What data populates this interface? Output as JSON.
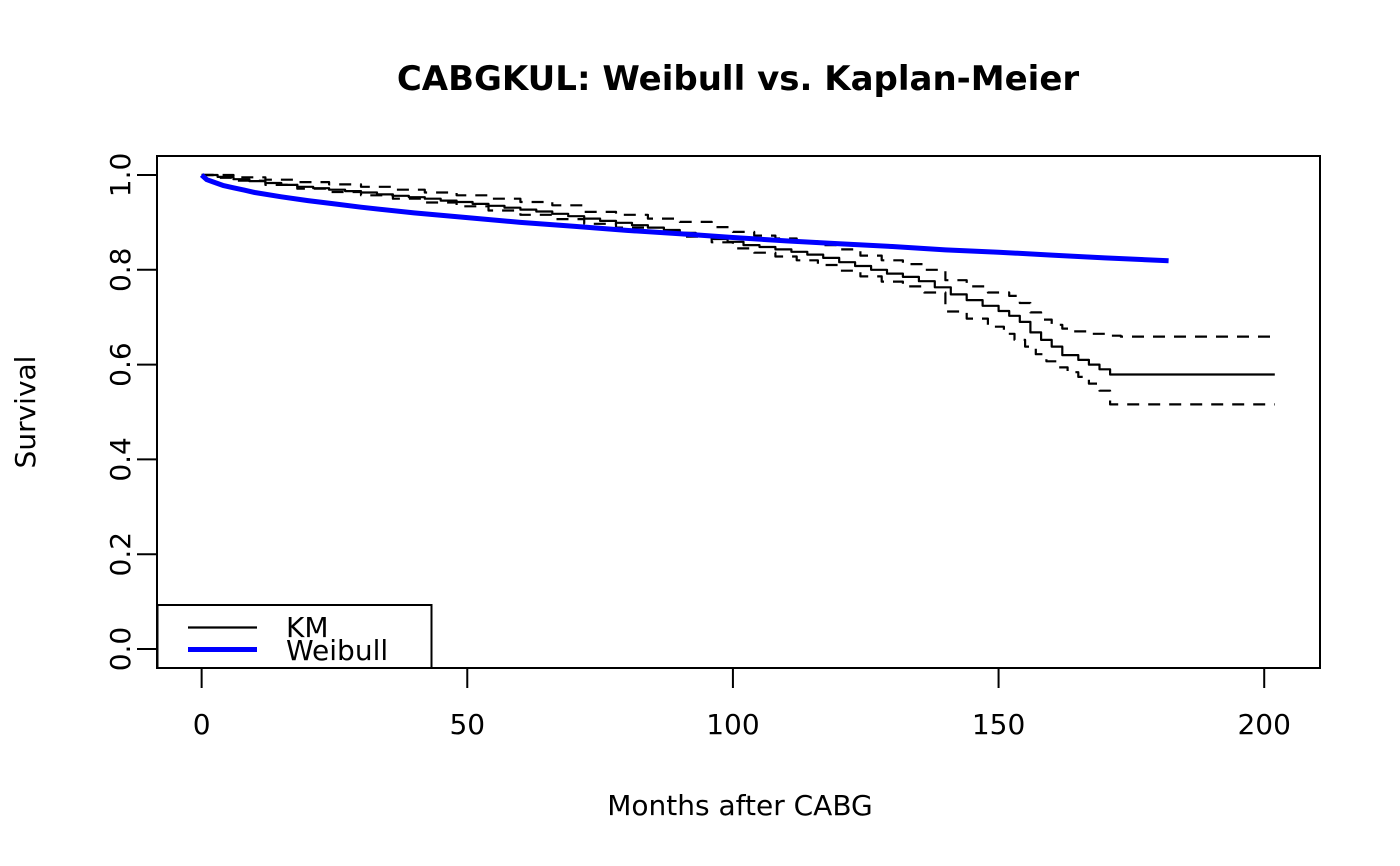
{
  "chart_data": {
    "type": "line",
    "title": "CABGKUL: Weibull vs. Kaplan-Meier",
    "xlabel": "Months after CABG",
    "ylabel": "Survival",
    "x_ticks": [
      0,
      50,
      100,
      150,
      200
    ],
    "y_ticks": [
      0.0,
      0.2,
      0.4,
      0.6,
      0.8,
      1.0
    ],
    "y_tick_labels": [
      "0.0",
      "0.2",
      "0.4",
      "0.6",
      "0.8",
      "1.0"
    ],
    "xlim": [
      -8.4,
      210.5
    ],
    "ylim": [
      -0.04,
      1.04
    ],
    "grid": false,
    "background": "#ffffff",
    "axis_color": "#000000",
    "legend_position": "bottom-left",
    "series": [
      {
        "name": "KM",
        "color": "#000000",
        "line_width": 2.2,
        "dash": null,
        "step": true,
        "points": [
          [
            0,
            1.0
          ],
          [
            3,
            0.996
          ],
          [
            6,
            0.991
          ],
          [
            9,
            0.987
          ],
          [
            12,
            0.983
          ],
          [
            15,
            0.979
          ],
          [
            18,
            0.975
          ],
          [
            21,
            0.972
          ],
          [
            24,
            0.969
          ],
          [
            27,
            0.966
          ],
          [
            30,
            0.963
          ],
          [
            33,
            0.959
          ],
          [
            36,
            0.956
          ],
          [
            39,
            0.953
          ],
          [
            42,
            0.95
          ],
          [
            45,
            0.946
          ],
          [
            48,
            0.943
          ],
          [
            51,
            0.939
          ],
          [
            54,
            0.935
          ],
          [
            57,
            0.931
          ],
          [
            60,
            0.927
          ],
          [
            63,
            0.923
          ],
          [
            66,
            0.918
          ],
          [
            69,
            0.913
          ],
          [
            72,
            0.908
          ],
          [
            75,
            0.903
          ],
          [
            78,
            0.899
          ],
          [
            81,
            0.894
          ],
          [
            84,
            0.889
          ],
          [
            87,
            0.884
          ],
          [
            90,
            0.878
          ],
          [
            93,
            0.872
          ],
          [
            96,
            0.865
          ],
          [
            99,
            0.859
          ],
          [
            102,
            0.852
          ],
          [
            105,
            0.848
          ],
          [
            108,
            0.843
          ],
          [
            111,
            0.838
          ],
          [
            114,
            0.832
          ],
          [
            117,
            0.825
          ],
          [
            120,
            0.816
          ],
          [
            123,
            0.808
          ],
          [
            126,
            0.8
          ],
          [
            129,
            0.792
          ],
          [
            132,
            0.785
          ],
          [
            135,
            0.776
          ],
          [
            138,
            0.763
          ],
          [
            141,
            0.748
          ],
          [
            144,
            0.736
          ],
          [
            147,
            0.724
          ],
          [
            150,
            0.713
          ],
          [
            152,
            0.703
          ],
          [
            154,
            0.69
          ],
          [
            156,
            0.668
          ],
          [
            158,
            0.652
          ],
          [
            160,
            0.638
          ],
          [
            162,
            0.62
          ],
          [
            165,
            0.61
          ],
          [
            167,
            0.6
          ],
          [
            169,
            0.59
          ],
          [
            171,
            0.579
          ],
          [
            202,
            0.579
          ]
        ]
      },
      {
        "name": "KM upper 95% CI",
        "color": "#000000",
        "line_width": 2.2,
        "dash": [
          12,
          9
        ],
        "step": true,
        "points": [
          [
            0,
            1.0
          ],
          [
            6,
            0.995
          ],
          [
            12,
            0.99
          ],
          [
            18,
            0.985
          ],
          [
            24,
            0.98
          ],
          [
            30,
            0.975
          ],
          [
            36,
            0.969
          ],
          [
            42,
            0.963
          ],
          [
            48,
            0.957
          ],
          [
            54,
            0.95
          ],
          [
            60,
            0.943
          ],
          [
            66,
            0.936
          ],
          [
            72,
            0.922
          ],
          [
            78,
            0.916
          ],
          [
            84,
            0.908
          ],
          [
            90,
            0.901
          ],
          [
            96,
            0.89
          ],
          [
            100,
            0.88
          ],
          [
            104,
            0.872
          ],
          [
            108,
            0.866
          ],
          [
            112,
            0.86
          ],
          [
            116,
            0.852
          ],
          [
            120,
            0.843
          ],
          [
            124,
            0.83
          ],
          [
            128,
            0.82
          ],
          [
            132,
            0.812
          ],
          [
            136,
            0.8
          ],
          [
            140,
            0.778
          ],
          [
            144,
            0.765
          ],
          [
            148,
            0.752
          ],
          [
            152,
            0.745
          ],
          [
            154,
            0.73
          ],
          [
            156,
            0.71
          ],
          [
            158,
            0.695
          ],
          [
            160,
            0.684
          ],
          [
            162,
            0.676
          ],
          [
            164,
            0.67
          ],
          [
            167,
            0.665
          ],
          [
            170,
            0.661
          ],
          [
            173,
            0.659
          ],
          [
            202,
            0.659
          ]
        ]
      },
      {
        "name": "KM lower 95% CI",
        "color": "#000000",
        "line_width": 2.2,
        "dash": [
          12,
          9
        ],
        "step": true,
        "points": [
          [
            0,
            1.0
          ],
          [
            3,
            0.994
          ],
          [
            6,
            0.988
          ],
          [
            12,
            0.979
          ],
          [
            18,
            0.971
          ],
          [
            24,
            0.964
          ],
          [
            30,
            0.957
          ],
          [
            36,
            0.95
          ],
          [
            42,
            0.942
          ],
          [
            48,
            0.934
          ],
          [
            54,
            0.925
          ],
          [
            60,
            0.916
          ],
          [
            66,
            0.907
          ],
          [
            72,
            0.897
          ],
          [
            78,
            0.889
          ],
          [
            84,
            0.88
          ],
          [
            90,
            0.87
          ],
          [
            96,
            0.858
          ],
          [
            100,
            0.845
          ],
          [
            104,
            0.836
          ],
          [
            108,
            0.828
          ],
          [
            112,
            0.82
          ],
          [
            116,
            0.81
          ],
          [
            120,
            0.798
          ],
          [
            124,
            0.786
          ],
          [
            128,
            0.775
          ],
          [
            132,
            0.765
          ],
          [
            136,
            0.752
          ],
          [
            140,
            0.712
          ],
          [
            144,
            0.697
          ],
          [
            148,
            0.68
          ],
          [
            151,
            0.665
          ],
          [
            153,
            0.652
          ],
          [
            155,
            0.638
          ],
          [
            157,
            0.622
          ],
          [
            159,
            0.607
          ],
          [
            161,
            0.594
          ],
          [
            163,
            0.584
          ],
          [
            165,
            0.574
          ],
          [
            167,
            0.56
          ],
          [
            169,
            0.545
          ],
          [
            171,
            0.516
          ],
          [
            202,
            0.516
          ]
        ]
      },
      {
        "name": "Weibull",
        "color": "#0000ff",
        "line_width": 5,
        "dash": null,
        "step": false,
        "points": [
          [
            0,
            1.0
          ],
          [
            1,
            0.99
          ],
          [
            2,
            0.986
          ],
          [
            4,
            0.978
          ],
          [
            6,
            0.973
          ],
          [
            8,
            0.968
          ],
          [
            10,
            0.963
          ],
          [
            15,
            0.954
          ],
          [
            20,
            0.946
          ],
          [
            25,
            0.939
          ],
          [
            30,
            0.932
          ],
          [
            40,
            0.92
          ],
          [
            50,
            0.91
          ],
          [
            60,
            0.9
          ],
          [
            70,
            0.892
          ],
          [
            80,
            0.883
          ],
          [
            90,
            0.876
          ],
          [
            100,
            0.868
          ],
          [
            110,
            0.861
          ],
          [
            120,
            0.855
          ],
          [
            130,
            0.849
          ],
          [
            140,
            0.842
          ],
          [
            150,
            0.837
          ],
          [
            160,
            0.831
          ],
          [
            170,
            0.825
          ],
          [
            182,
            0.819
          ]
        ]
      }
    ],
    "legend": {
      "entries": [
        {
          "label": "KM",
          "color": "#000000",
          "line_width": 2.2
        },
        {
          "label": "Weibull",
          "color": "#0000ff",
          "line_width": 5
        }
      ]
    }
  }
}
